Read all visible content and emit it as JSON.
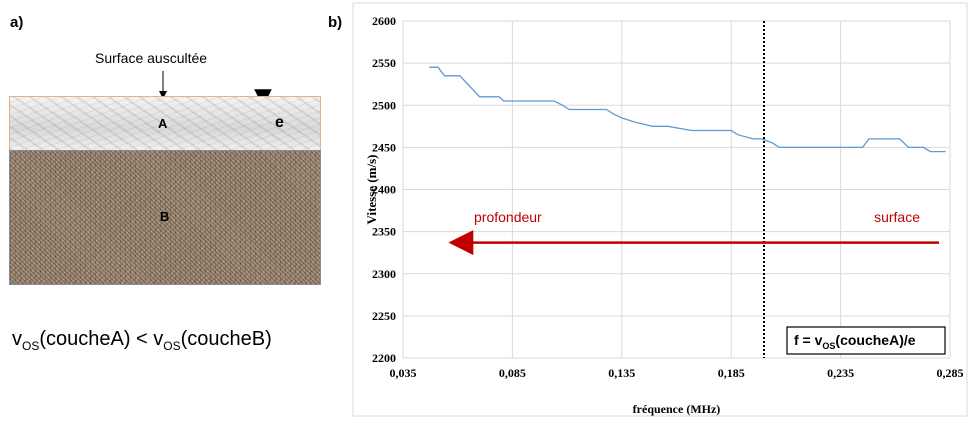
{
  "panel_a": {
    "label": "a)",
    "surface_label": "Surface auscultée",
    "layer_a_label": "A",
    "layer_b_label": "B",
    "thickness_label": "e",
    "relation": {
      "v": "v",
      "sub": "OS",
      "left": "(coucheA) < ",
      "right": "(coucheB)"
    }
  },
  "panel_b": {
    "label": "b)"
  },
  "colors": {
    "series": "#5b9bd5",
    "arrow": "#c00000",
    "annotation": "#c00000"
  },
  "chart_data": {
    "type": "line",
    "xlabel": "fréquence (MHz)",
    "ylabel": "Vitesse (m/s)",
    "xlim": [
      0.035,
      0.285
    ],
    "ylim": [
      2200,
      2600
    ],
    "xticks": [
      "0,035",
      "0,085",
      "0,135",
      "0,185",
      "0,235",
      "0,285"
    ],
    "xtick_values": [
      0.035,
      0.085,
      0.135,
      0.185,
      0.235,
      0.285
    ],
    "yticks": [
      2200,
      2250,
      2300,
      2350,
      2400,
      2450,
      2500,
      2550,
      2600
    ],
    "grid": true,
    "series": [
      {
        "x": [
          0.047,
          0.051,
          0.054,
          0.061,
          0.07,
          0.073,
          0.079,
          0.081,
          0.083,
          0.104,
          0.108,
          0.111,
          0.128,
          0.131,
          0.135,
          0.141,
          0.149,
          0.156,
          0.167,
          0.185,
          0.188,
          0.195,
          0.199,
          0.204,
          0.207,
          0.245,
          0.248,
          0.262,
          0.266,
          0.273,
          0.276,
          0.283
        ],
        "y": [
          2545,
          2545,
          2535,
          2535,
          2510,
          2510,
          2510,
          2505,
          2505,
          2505,
          2500,
          2495,
          2495,
          2490,
          2485,
          2480,
          2475,
          2475,
          2470,
          2470,
          2465,
          2460,
          2460,
          2455,
          2450,
          2450,
          2460,
          2460,
          2450,
          2450,
          2445,
          2445
        ]
      }
    ],
    "annotations": {
      "left_text": "profondeur",
      "right_text": "surface",
      "vline_x": 0.2,
      "arrow_y": 2337,
      "arrow_from_x": 0.28,
      "arrow_to_x": 0.058,
      "box_main": "f = v",
      "box_sub": "OS",
      "box_tail": "(coucheA)/e"
    }
  }
}
